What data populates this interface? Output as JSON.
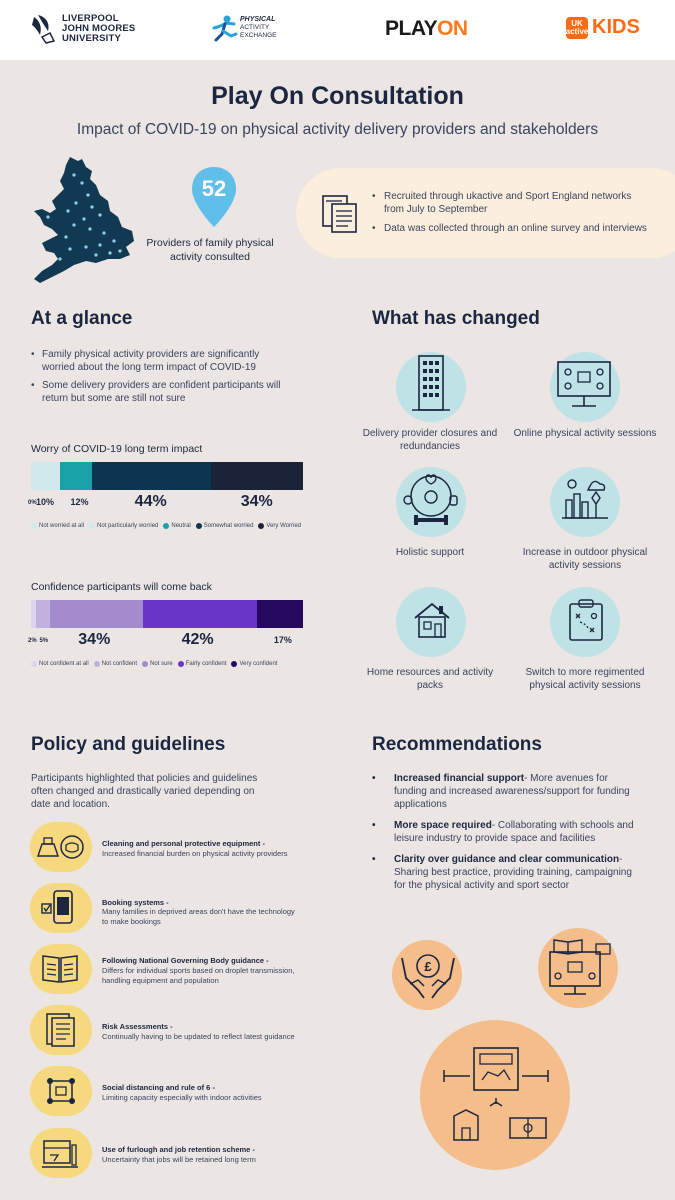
{
  "header": {
    "ljmu_lines": [
      "LIVERPOOL",
      "JOHN MOORES",
      "UNIVERSITY"
    ],
    "pae_lines": [
      "PHYSICAL",
      "ACTIVITY",
      "EXCHANGE"
    ],
    "playon_play": "PLAY",
    "playon_on": "ON",
    "ukactive_badge": "UK active",
    "kids": "KIDS"
  },
  "title": "Play On Consultation",
  "subtitle": "Impact of COVID-19 on physical activity delivery providers and stakeholders",
  "pin": {
    "number": "52",
    "label": "Providers of family physical activity consulted"
  },
  "recruitment": [
    "Recruited through ukactive and Sport England networks from July to September",
    "Data was collected through an online survey and interviews"
  ],
  "glance": {
    "title": "At a glance",
    "bullets": [
      "Family physical activity providers are significantly worried about the long term impact of COVID-19",
      "Some delivery providers are confident participants will return but some are still not sure"
    ]
  },
  "chart_data": [
    {
      "type": "bar",
      "title": "Worry of COVID-19 long term impact",
      "categories": [
        "Not worried at all",
        "Not particularly worried",
        "Neutral",
        "Somewhat worried",
        "Very Worried"
      ],
      "values": [
        0,
        10,
        12,
        44,
        34
      ],
      "labels": [
        "0%",
        "10%",
        "12%",
        "44%",
        "34%"
      ],
      "colors": [
        "#cfe9ec",
        "#cfe9ec",
        "#19a3a8",
        "#0e3550",
        "#1b2338"
      ],
      "legend": "bottom"
    },
    {
      "type": "bar",
      "title": "Confidence participants will come back",
      "categories": [
        "Not confident at all",
        "Not confident",
        "Not sure",
        "Fairly confident",
        "Very confident"
      ],
      "values": [
        2,
        5,
        34,
        42,
        17
      ],
      "labels": [
        "2%",
        "5%",
        "34%",
        "42%",
        "17%"
      ],
      "colors": [
        "#ddd4ee",
        "#c0b1df",
        "#a38bcc",
        "#6a35c9",
        "#26095e"
      ],
      "legend": "bottom"
    }
  ],
  "changed": {
    "title": "What has changed",
    "items": [
      {
        "label": "Delivery provider closures and redundancies",
        "icon": "building-icon"
      },
      {
        "label": "Online physical activity sessions",
        "icon": "video-call-icon"
      },
      {
        "label": "Holistic support",
        "icon": "wellbeing-icon"
      },
      {
        "label": "Increase in outdoor physical activity sessions",
        "icon": "outdoor-city-icon"
      },
      {
        "label": "Home resources and activity packs",
        "icon": "house-icon"
      },
      {
        "label": "Switch to more regimented physical activity sessions",
        "icon": "clipboard-plan-icon"
      }
    ]
  },
  "policy": {
    "title": "Policy and guidelines",
    "intro": "Participants highlighted that policies and guidelines often changed and drastically varied depending on date and location.",
    "items": [
      {
        "title": "Cleaning and personal protective equipment -",
        "desc": "Increased financial burden on physical activity providers",
        "icon": "cleaning-ppe-icon"
      },
      {
        "title": "Booking systems -",
        "desc": "Many families in deprived areas don't have the technology to make bookings",
        "icon": "phone-booking-icon"
      },
      {
        "title": "Following National Governing Body guidance -",
        "desc": "Differs for individual sports based on droplet transmission, handling equipment and population",
        "icon": "guidance-book-icon"
      },
      {
        "title": "Risk Assessments -",
        "desc": "Continually having to be updated to reflect latest guidance",
        "icon": "risk-document-icon"
      },
      {
        "title": "Social distancing and rule of 6 -",
        "desc": "Limiting capacity especially with indoor activities",
        "icon": "distancing-icon"
      },
      {
        "title": "Use of furlough and job retention scheme -",
        "desc": "Uncertainty that jobs will be retained long term",
        "icon": "furlough-icon"
      }
    ]
  },
  "recommendations": {
    "title": "Recommendations",
    "items": [
      {
        "bold": "Increased financial support",
        "text": "- More avenues for funding and increased awareness/support for funding applications"
      },
      {
        "bold": "More space required",
        "text": "- Collaborating with schools and leisure industry to provide space and facilities"
      },
      {
        "bold": "Clarity over guidance and clear communication",
        "text": "- Sharing best practice, providing training, campaigning for the physical activity and sport sector"
      }
    ]
  },
  "colors": {
    "navy": "#1c2640",
    "teal_light": "#bfe2e7",
    "pin_blue": "#5fbfe8",
    "yellow": "#f6d97f",
    "orange": "#f5bd8a",
    "cream": "#fbeedc",
    "background": "#ebe6e3"
  }
}
